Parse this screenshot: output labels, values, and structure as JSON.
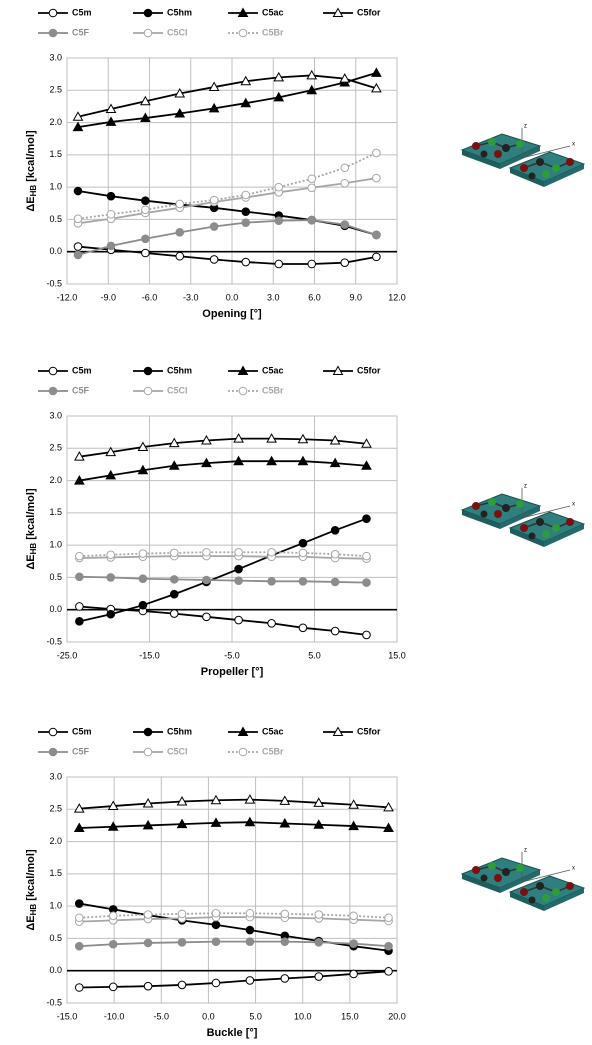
{
  "chart_data": [
    {
      "type": "line",
      "x_label": "Opening [°]",
      "y_label": [
        "ΔE",
        "HB",
        " [kcal/mol]"
      ],
      "x": [
        -11.2,
        -8.8,
        -6.3,
        -3.8,
        -1.3,
        1.0,
        3.4,
        5.8,
        8.2,
        10.5
      ],
      "xlim": [
        -12,
        12
      ],
      "xticks": [
        {
          "value": -12,
          "label": "-12.0"
        },
        {
          "value": -9,
          "label": "-9.0"
        },
        {
          "value": -6,
          "label": "-6.0"
        },
        {
          "value": -3,
          "label": "-3.0"
        },
        {
          "value": 0,
          "label": "0.0"
        },
        {
          "value": 3,
          "label": "3.0"
        },
        {
          "value": 6,
          "label": "6.0"
        },
        {
          "value": 9,
          "label": "9.0"
        },
        {
          "value": 12,
          "label": "12.0"
        }
      ],
      "ylim": [
        -0.5,
        3.0
      ],
      "yticks": [
        -0.5,
        {
          "value": 0,
          "label": "0.0"
        },
        0.5,
        {
          "value": 1,
          "label": "1.0"
        },
        1.5,
        {
          "value": 2,
          "label": "2.0"
        },
        2.5,
        {
          "value": 3,
          "label": "3.0"
        }
      ],
      "grid": true,
      "series": [
        {
          "name": "C5m",
          "color": "#000000",
          "marker": "circle",
          "marker_fill": "#ffffff",
          "dash": false,
          "values": [
            0.08,
            0.03,
            -0.02,
            -0.07,
            -0.12,
            -0.16,
            -0.19,
            -0.19,
            -0.17,
            -0.08
          ]
        },
        {
          "name": "C5hm",
          "color": "#000000",
          "marker": "circle",
          "marker_fill": "#000000",
          "dash": false,
          "values": [
            0.94,
            0.86,
            0.79,
            0.73,
            0.68,
            0.62,
            0.56,
            0.49,
            0.4,
            0.26
          ]
        },
        {
          "name": "C5ac",
          "color": "#000000",
          "marker": "triangle",
          "marker_fill": "#000000",
          "dash": false,
          "values": [
            1.93,
            2.01,
            2.07,
            2.14,
            2.22,
            2.3,
            2.39,
            2.5,
            2.62,
            2.77
          ]
        },
        {
          "name": "C5for",
          "color": "#000000",
          "marker": "triangle",
          "marker_fill": "#ffffff",
          "dash": false,
          "values": [
            2.09,
            2.21,
            2.33,
            2.45,
            2.55,
            2.64,
            2.7,
            2.73,
            2.68,
            2.53
          ]
        },
        {
          "name": "C5F",
          "color": "#8c8c8c",
          "marker": "circle",
          "marker_fill": "#8c8c8c",
          "dash": false,
          "values": [
            -0.05,
            0.09,
            0.2,
            0.3,
            0.39,
            0.45,
            0.48,
            0.49,
            0.42,
            0.26
          ]
        },
        {
          "name": "C5Cl",
          "color": "#a6a6a6",
          "marker": "circle",
          "marker_fill": "#ffffff",
          "dash": false,
          "values": [
            0.44,
            0.51,
            0.6,
            0.68,
            0.77,
            0.84,
            0.92,
            0.99,
            1.06,
            1.14
          ]
        },
        {
          "name": "C5Br",
          "color": "#a6a6a6",
          "marker": "circle",
          "marker_fill": "#ffffff",
          "dash": true,
          "values": [
            0.51,
            0.58,
            0.65,
            0.74,
            0.8,
            0.88,
            1.0,
            1.13,
            1.3,
            1.53
          ]
        }
      ]
    },
    {
      "type": "line",
      "x_label": "Propeller [°]",
      "y_label": [
        "ΔE",
        "HB",
        " [kcal/mol]"
      ],
      "x": [
        -23.5,
        -19.7,
        -15.8,
        -12.0,
        -8.1,
        -4.2,
        -0.2,
        3.6,
        7.5,
        11.3
      ],
      "xlim": [
        -25,
        15
      ],
      "xticks": [
        {
          "value": -25,
          "label": "-25.0"
        },
        {
          "value": -15,
          "label": "-15.0"
        },
        {
          "value": -5,
          "label": "-5.0"
        },
        {
          "value": 5,
          "label": "5.0"
        },
        {
          "value": 15,
          "label": "15.0"
        }
      ],
      "ylim": [
        -0.5,
        3.0
      ],
      "yticks": [
        -0.5,
        {
          "value": 0,
          "label": "0.0"
        },
        0.5,
        {
          "value": 1,
          "label": "1.0"
        },
        1.5,
        {
          "value": 2,
          "label": "2.0"
        },
        2.5,
        {
          "value": 3,
          "label": "3.0"
        }
      ],
      "grid": true,
      "series": [
        {
          "name": "C5m",
          "color": "#000000",
          "marker": "circle",
          "marker_fill": "#ffffff",
          "dash": false,
          "values": [
            0.05,
            0.01,
            -0.02,
            -0.06,
            -0.11,
            -0.16,
            -0.21,
            -0.28,
            -0.33,
            -0.39
          ]
        },
        {
          "name": "C5hm",
          "color": "#000000",
          "marker": "circle",
          "marker_fill": "#000000",
          "dash": false,
          "values": [
            -0.18,
            -0.07,
            0.07,
            0.24,
            0.43,
            0.63,
            0.84,
            1.03,
            1.23,
            1.41
          ]
        },
        {
          "name": "C5ac",
          "color": "#000000",
          "marker": "triangle",
          "marker_fill": "#000000",
          "dash": false,
          "values": [
            2.0,
            2.08,
            2.16,
            2.23,
            2.27,
            2.3,
            2.3,
            2.3,
            2.27,
            2.23
          ]
        },
        {
          "name": "C5for",
          "color": "#000000",
          "marker": "triangle",
          "marker_fill": "#ffffff",
          "dash": false,
          "values": [
            2.37,
            2.44,
            2.52,
            2.58,
            2.62,
            2.65,
            2.65,
            2.64,
            2.62,
            2.57
          ]
        },
        {
          "name": "C5F",
          "color": "#8c8c8c",
          "marker": "circle",
          "marker_fill": "#8c8c8c",
          "dash": false,
          "values": [
            0.51,
            0.5,
            0.48,
            0.47,
            0.46,
            0.45,
            0.44,
            0.44,
            0.43,
            0.42
          ]
        },
        {
          "name": "C5Cl",
          "color": "#a6a6a6",
          "marker": "circle",
          "marker_fill": "#ffffff",
          "dash": false,
          "values": [
            0.8,
            0.81,
            0.82,
            0.83,
            0.83,
            0.83,
            0.82,
            0.82,
            0.8,
            0.79
          ]
        },
        {
          "name": "C5Br",
          "color": "#a6a6a6",
          "marker": "circle",
          "marker_fill": "#ffffff",
          "dash": true,
          "values": [
            0.83,
            0.85,
            0.87,
            0.88,
            0.89,
            0.89,
            0.89,
            0.88,
            0.86,
            0.83
          ]
        }
      ]
    },
    {
      "type": "line",
      "x_label": "Buckle [°]",
      "y_label": [
        "ΔE",
        "HB",
        " [kcal/mol]"
      ],
      "x": [
        -13.7,
        -10.1,
        -6.4,
        -2.8,
        0.8,
        4.4,
        8.1,
        11.7,
        15.4,
        19.1
      ],
      "xlim": [
        -15,
        20
      ],
      "xticks": [
        {
          "value": -15,
          "label": "-15.0"
        },
        {
          "value": -10,
          "label": "-10.0"
        },
        {
          "value": -5,
          "label": "-5.0"
        },
        {
          "value": 0,
          "label": "0.0"
        },
        {
          "value": 5,
          "label": "5.0"
        },
        {
          "value": 10,
          "label": "10.0"
        },
        {
          "value": 15,
          "label": "15.0"
        },
        {
          "value": 20,
          "label": "20.0"
        }
      ],
      "ylim": [
        -0.5,
        3.0
      ],
      "yticks": [
        -0.5,
        {
          "value": 0,
          "label": "0.0"
        },
        0.5,
        {
          "value": 1,
          "label": "1.0"
        },
        1.5,
        {
          "value": 2,
          "label": "2.0"
        },
        2.5,
        {
          "value": 3,
          "label": "3.0"
        }
      ],
      "grid": true,
      "series": [
        {
          "name": "C5m",
          "color": "#000000",
          "marker": "circle",
          "marker_fill": "#ffffff",
          "dash": false,
          "values": [
            -0.26,
            -0.25,
            -0.24,
            -0.22,
            -0.19,
            -0.15,
            -0.12,
            -0.09,
            -0.05,
            -0.01
          ]
        },
        {
          "name": "C5hm",
          "color": "#000000",
          "marker": "circle",
          "marker_fill": "#000000",
          "dash": false,
          "values": [
            1.04,
            0.95,
            0.86,
            0.78,
            0.71,
            0.63,
            0.54,
            0.46,
            0.38,
            0.31
          ]
        },
        {
          "name": "C5ac",
          "color": "#000000",
          "marker": "triangle",
          "marker_fill": "#000000",
          "dash": false,
          "values": [
            2.21,
            2.23,
            2.25,
            2.27,
            2.29,
            2.3,
            2.28,
            2.26,
            2.24,
            2.21
          ]
        },
        {
          "name": "C5for",
          "color": "#000000",
          "marker": "triangle",
          "marker_fill": "#ffffff",
          "dash": false,
          "values": [
            2.51,
            2.55,
            2.59,
            2.62,
            2.64,
            2.65,
            2.63,
            2.6,
            2.57,
            2.53
          ]
        },
        {
          "name": "C5F",
          "color": "#8c8c8c",
          "marker": "circle",
          "marker_fill": "#8c8c8c",
          "dash": false,
          "values": [
            0.38,
            0.41,
            0.43,
            0.44,
            0.45,
            0.45,
            0.45,
            0.44,
            0.42,
            0.38
          ]
        },
        {
          "name": "C5Cl",
          "color": "#a6a6a6",
          "marker": "circle",
          "marker_fill": "#ffffff",
          "dash": false,
          "values": [
            0.76,
            0.78,
            0.8,
            0.81,
            0.83,
            0.83,
            0.82,
            0.81,
            0.79,
            0.77
          ]
        },
        {
          "name": "C5Br",
          "color": "#a6a6a6",
          "marker": "circle",
          "marker_fill": "#ffffff",
          "dash": true,
          "values": [
            0.82,
            0.85,
            0.87,
            0.88,
            0.89,
            0.89,
            0.88,
            0.87,
            0.85,
            0.82
          ]
        }
      ]
    }
  ]
}
